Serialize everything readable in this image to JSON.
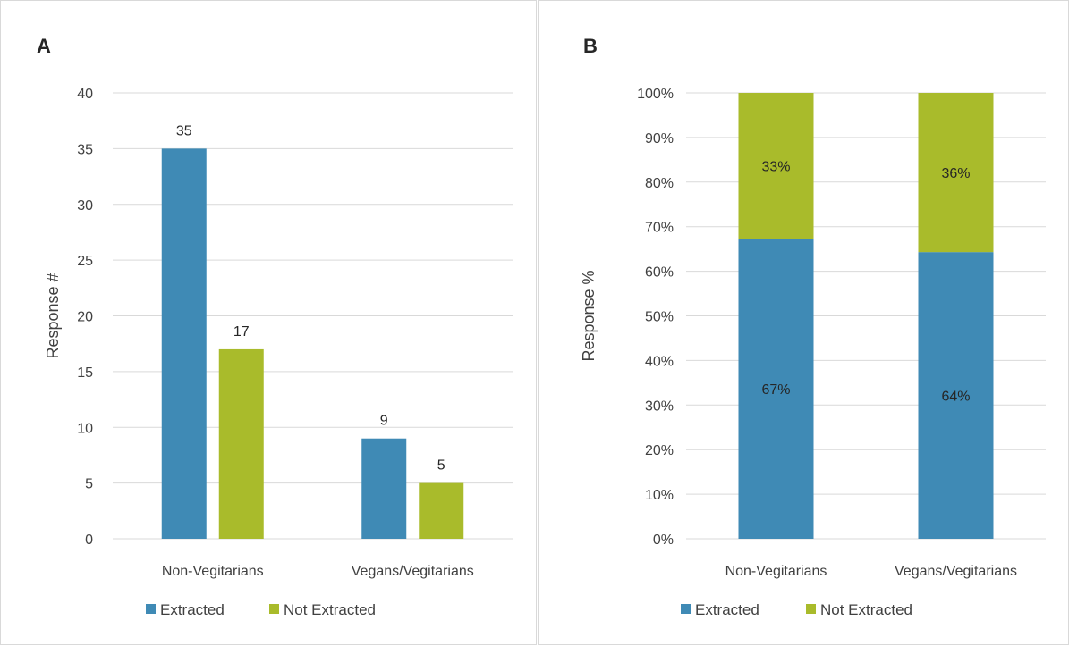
{
  "colors": {
    "extracted": "#3f8ab5",
    "not_extracted": "#a9bb2b",
    "grid": "#d9d9d9",
    "text": "#404040"
  },
  "chart_data": [
    {
      "panel": "A",
      "type": "bar",
      "title": "",
      "xlabel": "",
      "ylabel": "Response #",
      "ylim": [
        0,
        40
      ],
      "yticks": [
        0,
        5,
        10,
        15,
        20,
        25,
        30,
        35,
        40
      ],
      "ytick_labels": [
        "0",
        "5",
        "10",
        "15",
        "20",
        "25",
        "30",
        "35",
        "40"
      ],
      "categories": [
        "Non-Vegitarians",
        "Vegans/Vegitarians"
      ],
      "series": [
        {
          "name": "Extracted",
          "values": [
            35,
            9
          ],
          "labels": [
            "35",
            "9"
          ]
        },
        {
          "name": "Not Extracted",
          "values": [
            17,
            5
          ],
          "labels": [
            "17",
            "5"
          ]
        }
      ],
      "grid": true,
      "legend": "bottom"
    },
    {
      "panel": "B",
      "type": "bar",
      "stacked": true,
      "title": "",
      "xlabel": "",
      "ylabel": "Response %",
      "ylim": [
        0,
        100
      ],
      "yticks": [
        0,
        10,
        20,
        30,
        40,
        50,
        60,
        70,
        80,
        90,
        100
      ],
      "ytick_labels": [
        "0%",
        "10%",
        "20%",
        "30%",
        "40%",
        "50%",
        "60%",
        "70%",
        "80%",
        "90%",
        "100%"
      ],
      "categories": [
        "Non-Vegitarians",
        "Vegans/Vegitarians"
      ],
      "series": [
        {
          "name": "Extracted",
          "values": [
            67.3,
            64.3
          ],
          "labels": [
            "67%",
            "64%"
          ]
        },
        {
          "name": "Not Extracted",
          "values": [
            32.7,
            35.7
          ],
          "labels": [
            "33%",
            "36%"
          ]
        }
      ],
      "grid": true,
      "legend": "bottom"
    }
  ]
}
